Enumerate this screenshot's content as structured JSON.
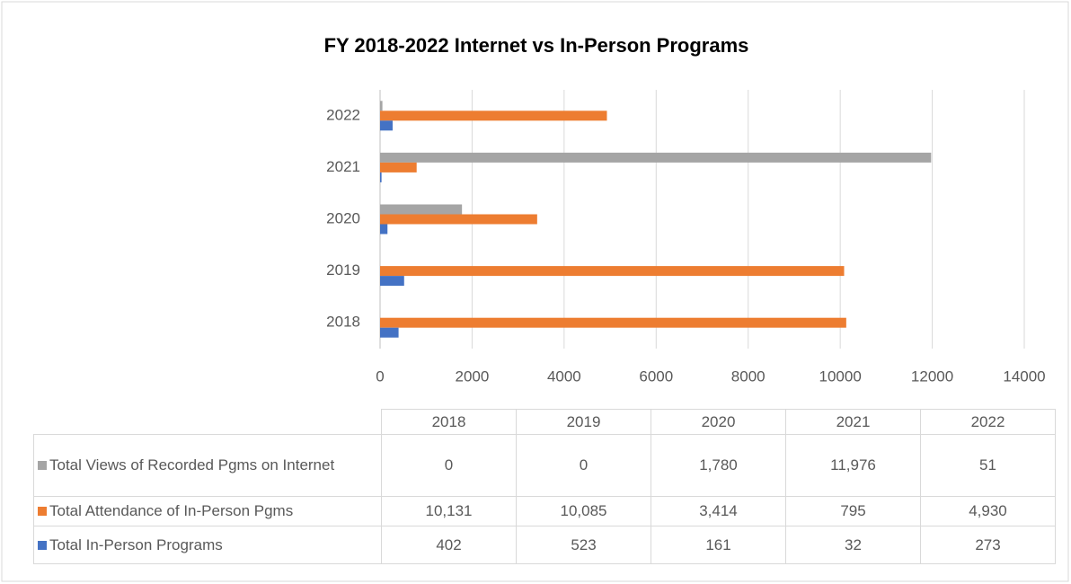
{
  "chart_data": {
    "type": "bar",
    "orientation": "horizontal",
    "title": "FY 2018-2022 Internet vs In-Person Programs",
    "categories": [
      "2018",
      "2019",
      "2020",
      "2021",
      "2022"
    ],
    "series": [
      {
        "name": "Total Views of Recorded Pgms on Internet",
        "color": "#a5a5a5",
        "values": [
          0,
          0,
          1780,
          11976,
          51
        ],
        "value_labels": [
          "0",
          "0",
          "1,780",
          "11,976",
          "51"
        ]
      },
      {
        "name": "Total Attendance of In-Person Pgms",
        "color": "#ed7d31",
        "values": [
          10131,
          10085,
          3414,
          795,
          4930
        ],
        "value_labels": [
          "10,131",
          "10,085",
          "3,414",
          "795",
          "4,930"
        ]
      },
      {
        "name": "Total In-Person Programs",
        "color": "#4472c4",
        "values": [
          402,
          523,
          161,
          32,
          273
        ],
        "value_labels": [
          "402",
          "523",
          "161",
          "32",
          "273"
        ]
      }
    ],
    "xlim": [
      0,
      14000
    ],
    "xticks": [
      0,
      2000,
      4000,
      6000,
      8000,
      10000,
      12000,
      14000
    ],
    "grid": true
  }
}
